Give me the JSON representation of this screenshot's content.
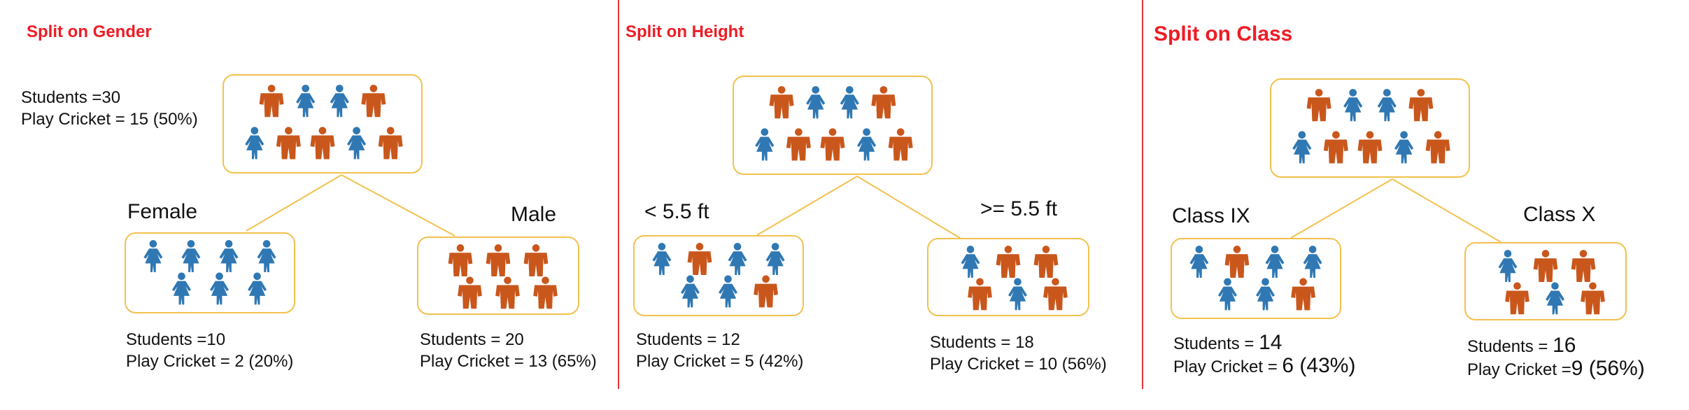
{
  "colors": {
    "male": "#c9571c",
    "female": "#2f78b3",
    "title": "#ee1c25",
    "node_border": "#f2c14e",
    "line": "#f2c14e"
  },
  "icons": {
    "male": "person-shirt-icon",
    "female": "person-dress-icon"
  },
  "panels": {
    "gender": {
      "title": "Split on Gender",
      "root": {
        "students_text": "Students =30",
        "cricket_text": "Play Cricket = 15 (50%)",
        "row1": [
          "m",
          "f",
          "f",
          "m"
        ],
        "row2": [
          "f",
          "m",
          "m",
          "f",
          "m"
        ]
      },
      "left": {
        "label": "Female",
        "students_text": "Students =10",
        "cricket_text": "Play Cricket = 2 (20%)",
        "row1": [
          "f",
          "f",
          "f",
          "f"
        ],
        "row2": [
          "f",
          "f",
          "f"
        ]
      },
      "right": {
        "label": "Male",
        "students_text": "Students = 20",
        "cricket_text": "Play Cricket = 13 (65%)",
        "row1": [
          "m",
          "m",
          "m"
        ],
        "row2": [
          "m",
          "m",
          "m"
        ]
      }
    },
    "height": {
      "title": "Split on Height",
      "root": {
        "row1": [
          "m",
          "f",
          "f",
          "m"
        ],
        "row2": [
          "f",
          "m",
          "m",
          "f",
          "m"
        ]
      },
      "left": {
        "label": "< 5.5 ft",
        "students_label": "Students = ",
        "students_value": "12",
        "cricket_text": "Play Cricket =  5 (42%)",
        "row1": [
          "f",
          "m",
          "f",
          "f"
        ],
        "row2": [
          "f",
          "f",
          "m"
        ]
      },
      "right": {
        "label": ">= 5.5 ft",
        "students_text": "Students = 18",
        "cricket_text": "Play Cricket =  10 (56%)",
        "row1": [
          "f",
          "m",
          "m"
        ],
        "row2": [
          "m",
          "f",
          "m"
        ]
      }
    },
    "class": {
      "title": "Split on Class",
      "root": {
        "row1": [
          "m",
          "f",
          "f",
          "m"
        ],
        "row2": [
          "f",
          "m",
          "m",
          "f",
          "m"
        ]
      },
      "left": {
        "label": "Class IX",
        "students_label": "Students = ",
        "students_value": "14",
        "cricket_label": "Play Cricket =  ",
        "cricket_value": "6 (43%)",
        "row1": [
          "f",
          "m",
          "f",
          "f"
        ],
        "row2": [
          "f",
          "f",
          "m"
        ]
      },
      "right": {
        "label": "Class X",
        "students_label": "Students = ",
        "students_value": "16",
        "cricket_label": "Play Cricket =",
        "cricket_value": "9 (56%)",
        "row1": [
          "f",
          "m",
          "m"
        ],
        "row2": [
          "m",
          "f",
          "m"
        ]
      }
    }
  }
}
